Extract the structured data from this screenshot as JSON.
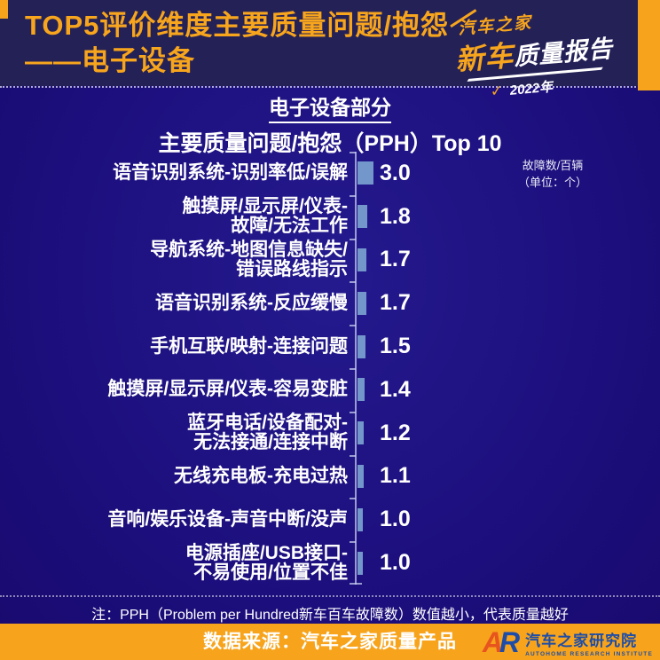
{
  "header": {
    "title_line1": "TOP5评价维度主要质量问题/抱怨",
    "title_line2": "——电子设备",
    "report_logo": {
      "brand": "汽车之家",
      "title_orange": "新车",
      "title_white": "质量报告",
      "check": "V",
      "year": "2022年"
    }
  },
  "chart": {
    "section_title": "电子设备部分",
    "subtitle": "主要质量问题/抱怨（PPH）Top 10",
    "unit_note": [
      "故障数/百辆",
      "（单位：个）"
    ]
  },
  "chart_data": {
    "type": "bar",
    "orientation": "horizontal",
    "title": "电子设备部分 主要质量问题/抱怨（PPH）Top 10",
    "categories": [
      "语音识别系统-识别率低/误解",
      "触摸屏/显示屏/仪表-\n故障/无法工作",
      "导航系统-地图信息缺失/\n错误路线指示",
      "语音识别系统-反应缓慢",
      "手机互联/映射-连接问题",
      "触摸屏/显示屏/仪表-容易变脏",
      "蓝牙电话/设备配对-\n无法接通/连接中断",
      "无线充电板-充电过热",
      "音响/娱乐设备-声音中断/没声",
      "电源插座/USB接口-\n不易使用/位置不佳"
    ],
    "values": [
      3.0,
      1.8,
      1.7,
      1.7,
      1.5,
      1.4,
      1.2,
      1.1,
      1.0,
      1.0
    ],
    "value_unit": "PPH（故障数/百辆，单位：个）",
    "xlim": [
      0,
      3.5
    ],
    "legend": "none",
    "grid": false,
    "bar_color": "#7396cb"
  },
  "note": "注：PPH（Problem per Hundred新车百车故障数）数值越小，代表质量越好",
  "footer": {
    "source": "数据来源：汽车之家质量产品",
    "logo_monogram_a": "A",
    "logo_monogram_r": "R",
    "org_name": "汽车之家研究院",
    "org_name_en": "AUTOHOME RESEARCH INSTITUTE"
  },
  "colors": {
    "accent_orange": "#f7a41c",
    "header_bg": "#242157",
    "page_bg": "#1d0f7e",
    "bar_blue": "#7396cb",
    "logo_blue": "#1d4da8",
    "logo_red": "#e8541e",
    "text_white": "#ffffff"
  }
}
